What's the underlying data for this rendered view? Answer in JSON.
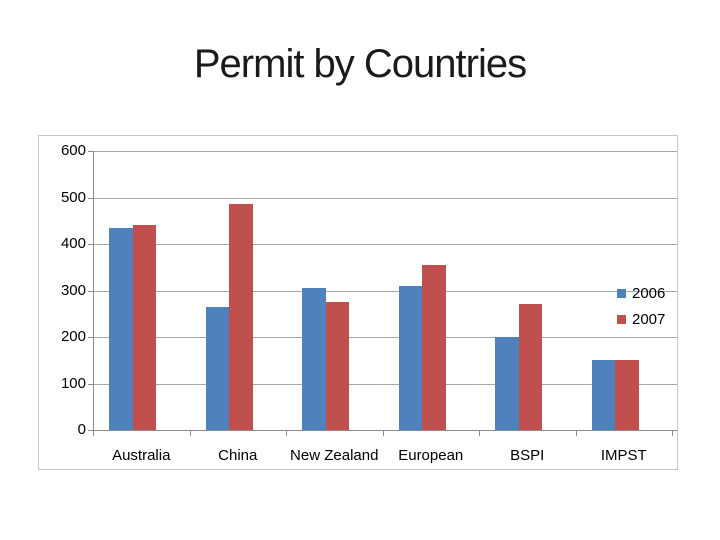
{
  "slide": {
    "title": "Permit by Countries"
  },
  "chart_data": {
    "type": "bar",
    "title": "Permit by Countries",
    "categories": [
      "Australia",
      "China",
      "New Zealand",
      "European",
      "BSPI",
      "IMPST"
    ],
    "series": [
      {
        "name": "2006",
        "color": "#4F81BD",
        "values": [
          435,
          265,
          305,
          310,
          200,
          150
        ]
      },
      {
        "name": "2007",
        "color": "#C0504D",
        "values": [
          440,
          485,
          275,
          355,
          270,
          150
        ]
      }
    ],
    "xlabel": "",
    "ylabel": "",
    "ylim": [
      0,
      600
    ],
    "yticks": [
      0,
      100,
      200,
      300,
      400,
      500,
      600
    ],
    "grid": true,
    "legend_position": "right-inside",
    "colors": {
      "gridline": "#A6A6A6",
      "axis": "#8C8C8C",
      "frame_border": "#C6C6C6",
      "tick_text": "#000000",
      "title_text": "#1A1A1A"
    }
  }
}
